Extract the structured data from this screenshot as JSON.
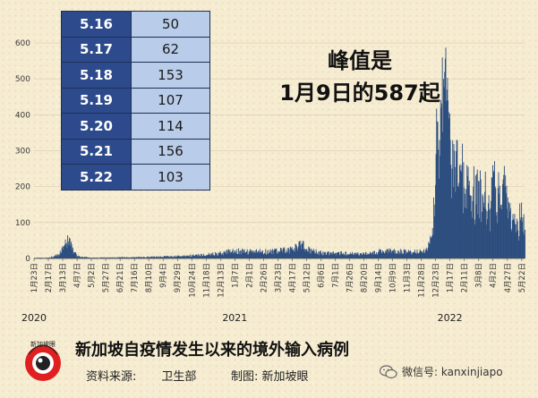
{
  "chart_data": {
    "type": "bar",
    "title": "新加坡自疫情发生以来的境外输入病例",
    "xlabel": "",
    "ylabel": "",
    "ylim": [
      0,
      620
    ],
    "yticks": [
      0,
      100,
      200,
      300,
      400,
      500,
      600
    ],
    "x_range": [
      "2020-01-23",
      "2022-05-27"
    ],
    "x_ticks": [
      "1月23日",
      "2月17日",
      "3月13日",
      "4月7日",
      "5月2日",
      "5月27日",
      "6月21日",
      "7月16日",
      "8月10日",
      "9月4日",
      "9月29日",
      "10月24日",
      "11月18日",
      "12月13日",
      "1月7日",
      "2月1日",
      "2月26日",
      "3月23日",
      "4月17日",
      "5月12日",
      "6月6日",
      "7月1日",
      "7月26日",
      "8月20日",
      "9月14日",
      "10月9日",
      "11月3日",
      "11月28日",
      "12月23日",
      "1月17日",
      "2月11日",
      "3月8日",
      "4月2日",
      "4月27日",
      "5月22日"
    ],
    "years": [
      {
        "label": "2020",
        "date": "2020-01-23"
      },
      {
        "label": "2021",
        "date": "2021-01-07"
      },
      {
        "label": "2022",
        "date": "2022-01-17"
      }
    ],
    "bar_color": "#2b4d7e",
    "series": [
      {
        "dates": [
          "2020-01-23",
          "2020-02-17",
          "2020-03-05",
          "2020-03-13",
          "2020-03-18",
          "2020-03-22",
          "2020-03-26",
          "2020-04-01",
          "2020-04-07",
          "2020-05-02",
          "2020-06-21",
          "2020-08-10",
          "2020-09-29",
          "2020-11-18",
          "2020-12-13",
          "2020-12-28",
          "2021-01-07",
          "2021-02-01",
          "2021-03-23",
          "2021-04-17",
          "2021-05-03",
          "2021-05-12",
          "2021-06-06",
          "2021-07-01",
          "2021-08-20",
          "2021-09-14",
          "2021-10-09",
          "2021-11-03",
          "2021-11-28",
          "2021-12-05",
          "2021-12-12",
          "2021-12-17",
          "2021-12-20",
          "2021-12-23",
          "2021-12-26",
          "2021-12-29",
          "2022-01-01",
          "2022-01-03",
          "2022-01-05",
          "2022-01-07",
          "2022-01-09",
          "2022-01-11",
          "2022-01-13",
          "2022-01-15",
          "2022-01-17",
          "2022-01-20",
          "2022-01-24",
          "2022-01-28",
          "2022-02-01",
          "2022-02-06",
          "2022-02-11",
          "2022-02-16",
          "2022-02-21",
          "2022-02-26",
          "2022-03-03",
          "2022-03-08",
          "2022-03-13",
          "2022-03-18",
          "2022-03-23",
          "2022-03-28",
          "2022-04-02",
          "2022-04-07",
          "2022-04-12",
          "2022-04-17",
          "2022-04-22",
          "2022-04-27",
          "2022-05-02",
          "2022-05-07",
          "2022-05-12",
          "2022-05-16",
          "2022-05-17",
          "2022-05-18",
          "2022-05-19",
          "2022-05-20",
          "2022-05-21",
          "2022-05-22",
          "2022-05-27"
        ],
        "values": [
          2,
          2,
          10,
          25,
          40,
          48,
          35,
          18,
          6,
          2,
          3,
          4,
          6,
          10,
          15,
          18,
          22,
          18,
          20,
          25,
          40,
          25,
          15,
          15,
          12,
          18,
          20,
          18,
          20,
          25,
          40,
          85,
          150,
          290,
          380,
          330,
          420,
          560,
          500,
          520,
          587,
          470,
          440,
          390,
          330,
          250,
          300,
          330,
          210,
          260,
          180,
          230,
          175,
          200,
          150,
          215,
          130,
          185,
          110,
          140,
          240,
          120,
          180,
          150,
          200,
          170,
          140,
          110,
          95,
          50,
          62,
          153,
          107,
          114,
          156,
          103,
          80
        ]
      }
    ]
  },
  "table": {
    "rows": [
      {
        "date": "5.16",
        "value": "50"
      },
      {
        "date": "5.17",
        "value": "62"
      },
      {
        "date": "5.18",
        "value": "153"
      },
      {
        "date": "5.19",
        "value": "107"
      },
      {
        "date": "5.20",
        "value": "114"
      },
      {
        "date": "5.21",
        "value": "156"
      },
      {
        "date": "5.22",
        "value": "103"
      }
    ]
  },
  "annotation": {
    "line1": "峰值是",
    "line2": "1月9日的587起"
  },
  "footer": {
    "source": "资料来源:",
    "source_org": "卫生部",
    "maker": "制图:",
    "maker_org": "新加坡眼",
    "logo_text": "新加坡眼",
    "wechat": "微信号: kanxinjiapo"
  },
  "icons": {
    "logo": "kanxinjiapo-logo",
    "wechat": "wechat-icon"
  }
}
